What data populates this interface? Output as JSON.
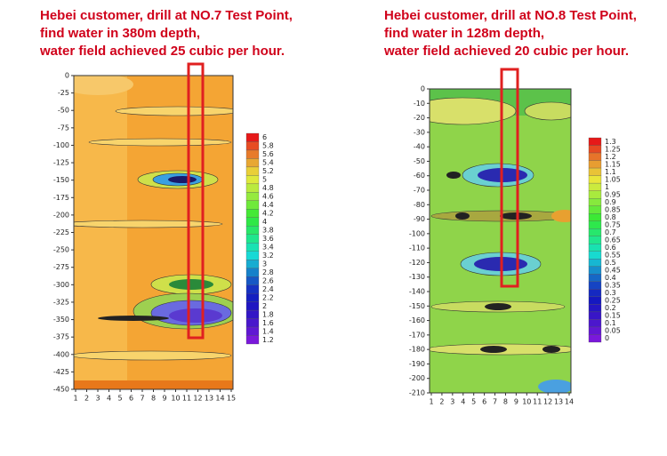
{
  "panels": [
    {
      "caption": [
        "Hebei customer, drill at  NO.7 Test Point,",
        "find water in 380m depth,",
        "water field achieved 25 cubic per hour."
      ],
      "yticks": [
        0,
        -25,
        -50,
        -75,
        -100,
        -125,
        -150,
        -175,
        -200,
        -225,
        -250,
        -275,
        -300,
        -325,
        -350,
        -375,
        -400,
        -425,
        -450
      ],
      "xticks": [
        1,
        2,
        3,
        4,
        5,
        6,
        7,
        8,
        9,
        10,
        11,
        12,
        13,
        14,
        15
      ],
      "colorbar": [
        6,
        5.8,
        5.6,
        5.4,
        5.2,
        5,
        4.8,
        4.6,
        4.4,
        4.2,
        4,
        3.8,
        3.6,
        3.4,
        3.2,
        3,
        2.8,
        2.6,
        2.4,
        2.2,
        2,
        1.8,
        1.6,
        1.4,
        1.2
      ]
    },
    {
      "caption": [
        "Hebei customer, drill at  NO.8 Test Point,",
        "find water in 128m depth,",
        "water field achieved 20 cubic per hour."
      ],
      "yticks": [
        0,
        -10,
        -20,
        -30,
        -40,
        -50,
        -60,
        -70,
        -80,
        -90,
        -100,
        -110,
        -120,
        -130,
        -140,
        -150,
        -160,
        -170,
        -180,
        -190,
        -200,
        -210
      ],
      "xticks": [
        1,
        2,
        3,
        4,
        5,
        6,
        7,
        8,
        9,
        10,
        11,
        12,
        13,
        14
      ],
      "colorbar": [
        1.3,
        1.25,
        1.2,
        1.15,
        1.1,
        1.05,
        1,
        0.95,
        0.9,
        0.85,
        0.8,
        0.75,
        0.7,
        0.65,
        0.6,
        0.55,
        0.5,
        0.45,
        0.4,
        0.35,
        0.3,
        0.25,
        0.2,
        0.15,
        0.1,
        0.05,
        0
      ]
    }
  ]
}
